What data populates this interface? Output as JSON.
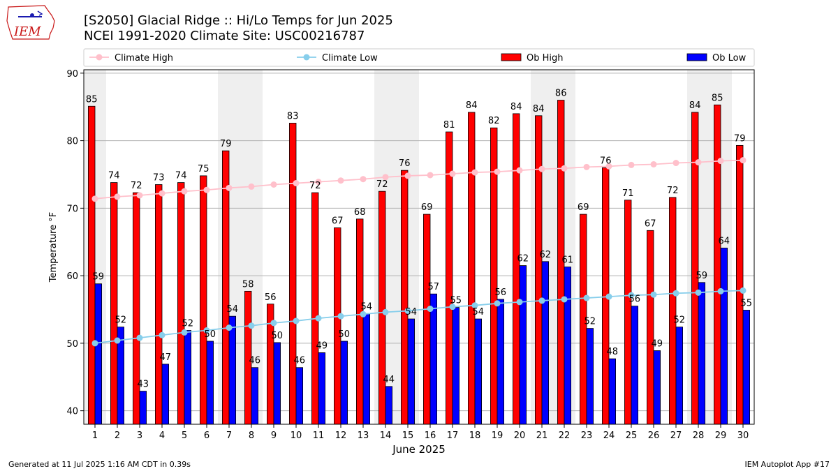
{
  "header": {
    "title_line1": "[S2050] Glacial Ridge :: Hi/Lo Temps for Jun 2025",
    "title_line2": "NCEI 1991-2020 Climate Site: USC00216787"
  },
  "logo": {
    "text": "IEM"
  },
  "footer": {
    "left": "Generated at 11 Jul 2025 1:16 AM CDT in 0.39s",
    "right": "IEM Autoplot App #17"
  },
  "colors": {
    "ob_high": "#ff0000",
    "ob_low": "#0000ff",
    "climate_high": "#ffc0cb",
    "climate_low": "#87ceeb",
    "weekend_shade": "#efefef",
    "grid": "#b0b0b0"
  },
  "chart_data": {
    "type": "bar",
    "title": "[S2050] Glacial Ridge :: Hi/Lo Temps for Jun 2025",
    "subtitle": "NCEI 1991-2020 Climate Site: USC00216787",
    "xlabel": "June 2025",
    "ylabel": "Temperature °F",
    "ylim": [
      38,
      90.5
    ],
    "yticks": [
      40,
      50,
      60,
      70,
      80,
      90
    ],
    "grid": "y",
    "legend_position": "top",
    "categories": [
      "1",
      "2",
      "3",
      "4",
      "5",
      "6",
      "7",
      "8",
      "9",
      "10",
      "11",
      "12",
      "13",
      "14",
      "15",
      "16",
      "17",
      "18",
      "19",
      "20",
      "21",
      "22",
      "23",
      "24",
      "25",
      "26",
      "27",
      "28",
      "29",
      "30"
    ],
    "shaded_days": [
      "1",
      "7",
      "8",
      "14",
      "15",
      "21",
      "22",
      "28",
      "29"
    ],
    "legend": [
      "Climate High",
      "Climate Low",
      "Ob High",
      "Ob Low"
    ],
    "series": [
      {
        "name": "Ob High",
        "kind": "bar",
        "values": [
          85.1,
          73.8,
          72.3,
          73.5,
          73.8,
          74.8,
          78.5,
          57.7,
          55.8,
          82.6,
          72.3,
          67.1,
          68.4,
          72.5,
          75.6,
          69.1,
          81.3,
          84.2,
          81.9,
          84.0,
          83.7,
          86.0,
          69.1,
          76.0,
          71.2,
          66.7,
          71.6,
          84.2,
          85.3,
          79.3
        ],
        "labels": [
          "85",
          "74",
          "72",
          "73",
          "74",
          "75",
          "79",
          "58",
          "56",
          "83",
          "72",
          "67",
          "68",
          "72",
          "76",
          "69",
          "81",
          "84",
          "82",
          "84",
          "84",
          "86",
          "69",
          "76",
          "71",
          "67",
          "72",
          "84",
          "85",
          "79"
        ]
      },
      {
        "name": "Ob Low",
        "kind": "bar",
        "values": [
          58.8,
          52.4,
          42.9,
          46.9,
          51.9,
          50.3,
          54.0,
          46.4,
          50.1,
          46.4,
          48.6,
          50.3,
          54.4,
          43.6,
          53.6,
          57.3,
          55.3,
          53.6,
          56.5,
          61.5,
          62.1,
          61.3,
          52.2,
          47.7,
          55.5,
          48.9,
          52.4,
          59.0,
          64.1,
          54.9
        ],
        "labels": [
          "59",
          "52",
          "43",
          "47",
          "52",
          "50",
          "54",
          "46",
          "50",
          "46",
          "49",
          "50",
          "54",
          "44",
          "54",
          "57",
          "55",
          "54",
          "56",
          "62",
          "62",
          "61",
          "52",
          "48",
          "56",
          "49",
          "52",
          "59",
          "64",
          "55"
        ]
      },
      {
        "name": "Climate High",
        "kind": "line",
        "values": [
          71.4,
          71.7,
          71.9,
          72.2,
          72.5,
          72.7,
          73.0,
          73.2,
          73.5,
          73.7,
          73.9,
          74.1,
          74.3,
          74.6,
          74.8,
          74.9,
          75.1,
          75.3,
          75.4,
          75.6,
          75.8,
          75.9,
          76.1,
          76.2,
          76.4,
          76.5,
          76.7,
          76.8,
          77.0,
          77.1
        ]
      },
      {
        "name": "Climate Low",
        "kind": "line",
        "values": [
          50.0,
          50.4,
          50.8,
          51.2,
          51.6,
          51.9,
          52.3,
          52.6,
          53.0,
          53.3,
          53.7,
          54.0,
          54.3,
          54.6,
          54.8,
          55.1,
          55.4,
          55.6,
          55.9,
          56.1,
          56.3,
          56.5,
          56.7,
          56.9,
          57.1,
          57.2,
          57.4,
          57.5,
          57.7,
          57.8
        ]
      }
    ]
  }
}
